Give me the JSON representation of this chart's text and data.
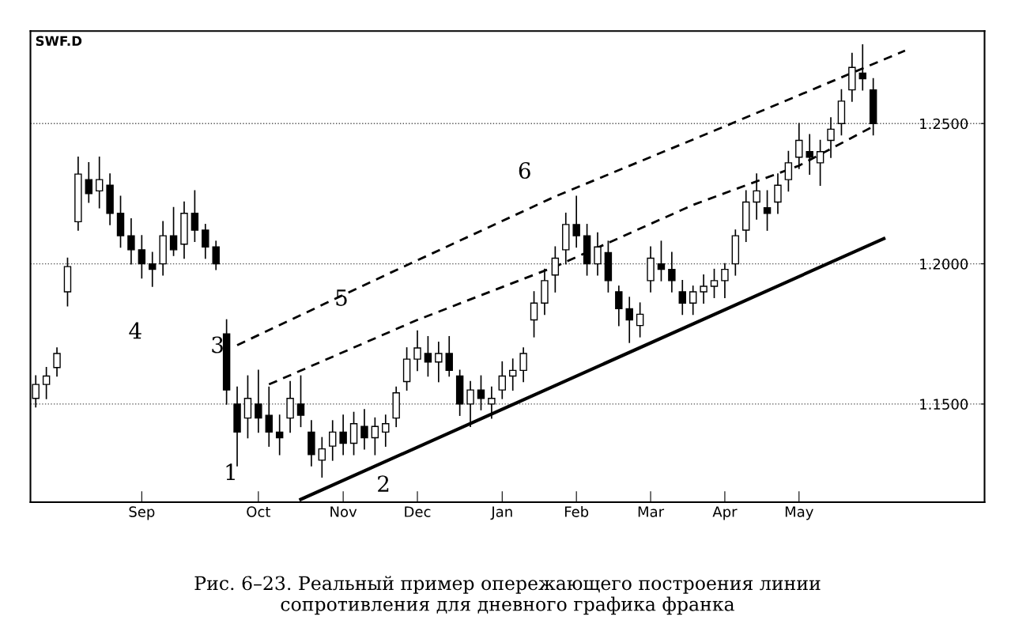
{
  "chart_data": {
    "type": "candlestick",
    "title": "SWF.D",
    "annotations": [
      "1",
      "2",
      "3",
      "4",
      "5",
      "6",
      "Рис. 6–23. Реальный пример опережающего построения линии\nсопротивления для дневного графика франка"
    ],
    "categories": [
      null,
      null,
      null,
      null,
      null,
      null,
      null,
      null,
      null,
      null,
      "Sep",
      null,
      null,
      null,
      null,
      null,
      null,
      null,
      null,
      null,
      null,
      "Oct",
      null,
      null,
      null,
      null,
      null,
      null,
      null,
      "Nov",
      null,
      null,
      null,
      null,
      null,
      null,
      "Dec",
      null,
      null,
      null,
      null,
      null,
      null,
      null,
      "Jan",
      null,
      null,
      null,
      null,
      null,
      null,
      "Feb",
      null,
      null,
      null,
      null,
      null,
      null,
      "Mar",
      null,
      null,
      null,
      null,
      null,
      null,
      "Apr",
      null,
      null,
      null,
      null,
      null,
      null,
      "May",
      null,
      null,
      null,
      null,
      null,
      null,
      null,
      null,
      null,
      null,
      null,
      null,
      null,
      null,
      null,
      null,
      null
    ],
    "ohlc": [
      [
        1.152,
        1.16,
        1.149,
        1.157
      ],
      [
        1.157,
        1.163,
        1.152,
        1.16
      ],
      [
        1.163,
        1.17,
        1.16,
        1.168
      ],
      [
        1.19,
        1.202,
        1.185,
        1.199
      ],
      [
        1.215,
        1.238,
        1.212,
        1.232
      ],
      [
        1.23,
        1.236,
        1.222,
        1.225
      ],
      [
        1.226,
        1.238,
        1.22,
        1.23
      ],
      [
        1.228,
        1.232,
        1.214,
        1.218
      ],
      [
        1.218,
        1.224,
        1.206,
        1.21
      ],
      [
        1.21,
        1.216,
        1.2,
        1.205
      ],
      [
        1.205,
        1.21,
        1.195,
        1.2
      ],
      [
        1.2,
        1.204,
        1.192,
        1.198
      ],
      [
        1.2,
        1.215,
        1.196,
        1.21
      ],
      [
        1.21,
        1.22,
        1.203,
        1.205
      ],
      [
        1.207,
        1.222,
        1.202,
        1.218
      ],
      [
        1.218,
        1.226,
        1.208,
        1.212
      ],
      [
        1.212,
        1.214,
        1.202,
        1.206
      ],
      [
        1.206,
        1.208,
        1.198,
        1.2
      ],
      [
        1.175,
        1.18,
        1.15,
        1.155
      ],
      [
        1.15,
        1.156,
        1.128,
        1.14
      ],
      [
        1.145,
        1.16,
        1.138,
        1.152
      ],
      [
        1.15,
        1.162,
        1.14,
        1.145
      ],
      [
        1.146,
        1.156,
        1.135,
        1.14
      ],
      [
        1.14,
        1.146,
        1.132,
        1.138
      ],
      [
        1.145,
        1.158,
        1.14,
        1.152
      ],
      [
        1.15,
        1.16,
        1.142,
        1.146
      ],
      [
        1.14,
        1.144,
        1.128,
        1.132
      ],
      [
        1.13,
        1.138,
        1.124,
        1.134
      ],
      [
        1.135,
        1.144,
        1.13,
        1.14
      ],
      [
        1.14,
        1.146,
        1.132,
        1.136
      ],
      [
        1.136,
        1.147,
        1.132,
        1.143
      ],
      [
        1.142,
        1.148,
        1.134,
        1.138
      ],
      [
        1.138,
        1.145,
        1.132,
        1.142
      ],
      [
        1.14,
        1.146,
        1.135,
        1.143
      ],
      [
        1.145,
        1.156,
        1.142,
        1.154
      ],
      [
        1.158,
        1.17,
        1.155,
        1.166
      ],
      [
        1.166,
        1.176,
        1.162,
        1.17
      ],
      [
        1.168,
        1.174,
        1.16,
        1.165
      ],
      [
        1.165,
        1.172,
        1.158,
        1.168
      ],
      [
        1.168,
        1.174,
        1.16,
        1.162
      ],
      [
        1.16,
        1.162,
        1.146,
        1.15
      ],
      [
        1.15,
        1.158,
        1.142,
        1.155
      ],
      [
        1.155,
        1.16,
        1.148,
        1.152
      ],
      [
        1.15,
        1.156,
        1.145,
        1.152
      ],
      [
        1.155,
        1.165,
        1.152,
        1.16
      ],
      [
        1.16,
        1.166,
        1.155,
        1.162
      ],
      [
        1.162,
        1.17,
        1.158,
        1.168
      ],
      [
        1.18,
        1.19,
        1.174,
        1.186
      ],
      [
        1.186,
        1.198,
        1.182,
        1.194
      ],
      [
        1.196,
        1.206,
        1.19,
        1.202
      ],
      [
        1.205,
        1.218,
        1.2,
        1.214
      ],
      [
        1.214,
        1.224,
        1.206,
        1.21
      ],
      [
        1.21,
        1.214,
        1.196,
        1.2
      ],
      [
        1.2,
        1.211,
        1.196,
        1.206
      ],
      [
        1.204,
        1.208,
        1.19,
        1.194
      ],
      [
        1.19,
        1.192,
        1.178,
        1.184
      ],
      [
        1.184,
        1.188,
        1.172,
        1.18
      ],
      [
        1.178,
        1.186,
        1.174,
        1.182
      ],
      [
        1.194,
        1.206,
        1.19,
        1.202
      ],
      [
        1.2,
        1.208,
        1.194,
        1.198
      ],
      [
        1.198,
        1.204,
        1.19,
        1.194
      ],
      [
        1.19,
        1.194,
        1.182,
        1.186
      ],
      [
        1.186,
        1.192,
        1.182,
        1.19
      ],
      [
        1.19,
        1.196,
        1.186,
        1.192
      ],
      [
        1.192,
        1.198,
        1.188,
        1.194
      ],
      [
        1.194,
        1.2,
        1.188,
        1.198
      ],
      [
        1.2,
        1.212,
        1.196,
        1.21
      ],
      [
        1.212,
        1.226,
        1.208,
        1.222
      ],
      [
        1.222,
        1.232,
        1.216,
        1.226
      ],
      [
        1.22,
        1.226,
        1.212,
        1.218
      ],
      [
        1.222,
        1.232,
        1.218,
        1.228
      ],
      [
        1.23,
        1.24,
        1.226,
        1.236
      ],
      [
        1.238,
        1.25,
        1.234,
        1.244
      ],
      [
        1.24,
        1.246,
        1.232,
        1.238
      ],
      [
        1.236,
        1.244,
        1.228,
        1.24
      ],
      [
        1.244,
        1.252,
        1.238,
        1.248
      ],
      [
        1.25,
        1.262,
        1.246,
        1.258
      ],
      [
        1.262,
        1.275,
        1.258,
        1.27
      ],
      [
        1.268,
        1.278,
        1.262,
        1.266
      ],
      [
        1.262,
        1.266,
        1.246,
        1.25
      ],
      null,
      null,
      null,
      null,
      null,
      null,
      null,
      null,
      null,
      null
    ],
    "color": "#000000",
    "series": [
      {
        "type": "line",
        "color": "#000000",
        "line_style": "solid",
        "values": [
          null,
          null,
          null,
          null,
          null,
          null,
          null,
          null,
          null,
          null,
          null,
          null,
          null,
          null,
          null,
          null,
          null,
          null,
          null,
          null,
          null,
          null,
          null,
          null,
          null,
          1.116,
          null,
          null,
          null,
          null,
          null,
          null,
          null,
          null,
          null,
          null,
          null,
          null,
          null,
          null,
          null,
          null,
          null,
          null,
          null,
          null,
          null,
          null,
          null,
          null,
          null,
          null,
          null,
          null,
          null,
          null,
          null,
          null,
          null,
          null,
          null,
          null,
          null,
          null,
          null,
          null,
          null,
          null,
          null,
          null,
          null,
          null,
          null,
          null,
          null,
          null,
          null,
          null,
          null,
          null,
          1.209,
          null,
          null,
          null,
          null,
          null,
          null,
          null,
          null,
          null
        ]
      },
      {
        "type": "line",
        "color": "#000000",
        "line_style": "dashed",
        "values": [
          null,
          null,
          null,
          null,
          null,
          null,
          null,
          null,
          null,
          null,
          null,
          null,
          null,
          null,
          null,
          null,
          null,
          null,
          null,
          1.171,
          null,
          null,
          null,
          null,
          null,
          null,
          null,
          null,
          null,
          null,
          null,
          null,
          null,
          1.196,
          null,
          null,
          null,
          null,
          null,
          null,
          null,
          null,
          null,
          null,
          null,
          null,
          null,
          null,
          null,
          1.224,
          null,
          null,
          null,
          null,
          null,
          null,
          null,
          null,
          null,
          null,
          null,
          null,
          null,
          null,
          null,
          1.249,
          null,
          null,
          null,
          null,
          null,
          null,
          null,
          null,
          null,
          null,
          null,
          null,
          null,
          null,
          null,
          null,
          1.276,
          null,
          null,
          null,
          null,
          null,
          null,
          null
        ]
      },
      {
        "type": "line",
        "color": "#000000",
        "line_style": "dashed",
        "values": [
          null,
          null,
          null,
          null,
          null,
          null,
          null,
          null,
          null,
          null,
          null,
          null,
          null,
          null,
          null,
          null,
          null,
          null,
          null,
          null,
          null,
          null,
          1.157,
          null,
          null,
          null,
          null,
          null,
          null,
          null,
          null,
          null,
          null,
          null,
          null,
          null,
          1.18,
          null,
          null,
          null,
          null,
          null,
          null,
          null,
          null,
          null,
          null,
          null,
          null,
          1.199,
          null,
          null,
          null,
          null,
          null,
          null,
          null,
          null,
          null,
          null,
          null,
          null,
          1.221,
          null,
          null,
          null,
          null,
          null,
          null,
          null,
          null,
          null,
          1.235,
          null,
          null,
          null,
          null,
          null,
          null,
          1.249,
          null,
          null,
          null,
          null,
          null,
          null,
          null,
          null,
          null,
          null
        ]
      }
    ],
    "ylim": [
      1.115,
      1.283
    ],
    "yticks": [
      {
        "value": 1.15,
        "label": "1.1500"
      },
      {
        "value": 1.2,
        "label": "1.2000"
      },
      {
        "value": 1.25,
        "label": "1.2500"
      }
    ],
    "grid": "y"
  }
}
